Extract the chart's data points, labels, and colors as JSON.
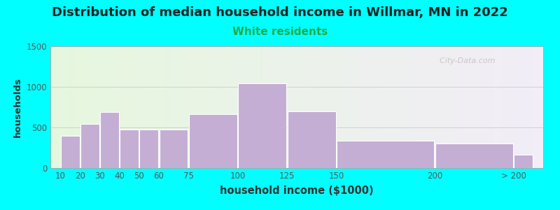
{
  "title": "Distribution of median household income in Willmar, MN in 2022",
  "subtitle": "White residents",
  "xlabel": "household income ($1000)",
  "ylabel": "households",
  "title_fontsize": 13,
  "subtitle_fontsize": 11,
  "subtitle_color": "#22aa44",
  "background_outer": "#00ffff",
  "bar_color": "#c4aed4",
  "bar_edge_color": "#ffffff",
  "watermark": "  City-Data.com",
  "tick_color": "#555555",
  "figsize": [
    8.0,
    3.0
  ],
  "dpi": 100,
  "bin_edges": [
    10,
    20,
    30,
    40,
    50,
    60,
    75,
    100,
    125,
    150,
    200,
    240
  ],
  "values": [
    400,
    540,
    690,
    475,
    475,
    475,
    660,
    1040,
    700,
    340,
    300,
    160
  ],
  "xtick_positions": [
    10,
    20,
    30,
    40,
    50,
    60,
    75,
    100,
    125,
    150,
    200,
    240
  ],
  "xtick_labels": [
    "10",
    "20",
    "30",
    "40",
    "50",
    "60",
    "75",
    "100",
    "125",
    "150",
    "200",
    "> 200"
  ],
  "xlim": [
    5,
    255
  ],
  "ylim": [
    0,
    1500
  ],
  "yticks": [
    0,
    500,
    1000,
    1500
  ]
}
